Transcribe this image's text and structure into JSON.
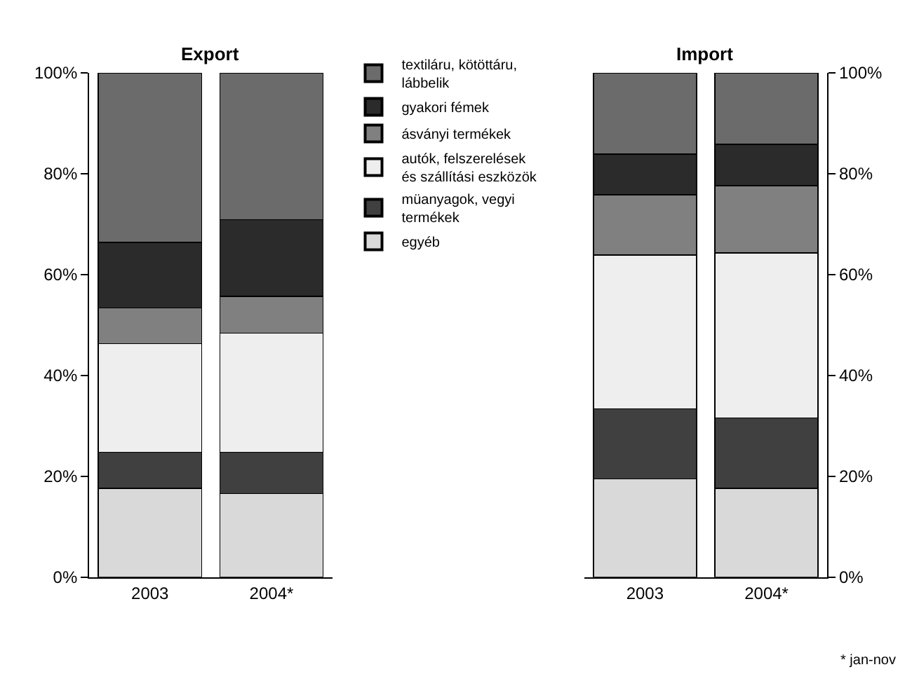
{
  "chart_data": [
    {
      "type": "bar",
      "stacked": true,
      "title": "Export",
      "categories": [
        "2003",
        "2004*"
      ],
      "ylim": [
        0,
        100
      ],
      "yticks": [
        {
          "value": 0,
          "label": "0%"
        },
        {
          "value": 20,
          "label": "20%"
        },
        {
          "value": 40,
          "label": "40%"
        },
        {
          "value": 60,
          "label": "60%"
        },
        {
          "value": 80,
          "label": "80%"
        },
        {
          "value": 100,
          "label": "100%"
        }
      ],
      "legend": "right",
      "series": [
        {
          "name": "egyéb",
          "color": "#d9d9d9",
          "values": [
            17.6,
            16.6
          ]
        },
        {
          "name": "müanyagok, vegyi termékek",
          "color": "#404040",
          "values": [
            7.2,
            8.2
          ]
        },
        {
          "name": "autók, felszerelések és szállítási eszközök",
          "color": "#eeeeee",
          "values": [
            21.5,
            23.6
          ]
        },
        {
          "name": "ásványi termékek",
          "color": "#808080",
          "values": [
            7.1,
            7.3
          ]
        },
        {
          "name": "gyakori fémek",
          "color": "#2b2b2b",
          "values": [
            13.0,
            15.2
          ]
        },
        {
          "name": "textiláru, kötöttáru, lábbelik",
          "color": "#6b6b6b",
          "values": [
            33.6,
            29.1
          ]
        }
      ]
    },
    {
      "type": "bar",
      "stacked": true,
      "title": "Import",
      "categories": [
        "2003",
        "2004*"
      ],
      "ylim": [
        0,
        100
      ],
      "yticks": [
        {
          "value": 0,
          "label": "0%"
        },
        {
          "value": 20,
          "label": "20%"
        },
        {
          "value": 40,
          "label": "40%"
        },
        {
          "value": 60,
          "label": "60%"
        },
        {
          "value": 80,
          "label": "80%"
        },
        {
          "value": 100,
          "label": "100%"
        }
      ],
      "annotations": [
        "* jan-nov"
      ],
      "series": [
        {
          "color": "#d9d9d9",
          "values": [
            19.5,
            17.6
          ]
        },
        {
          "color": "#404040",
          "values": [
            13.9,
            14.0
          ]
        },
        {
          "color": "#eeeeee",
          "values": [
            30.5,
            32.7
          ]
        },
        {
          "color": "#808080",
          "values": [
            11.9,
            13.3
          ]
        },
        {
          "color": "#2b2b2b",
          "values": [
            8.1,
            8.2
          ]
        },
        {
          "color": "#6b6b6b",
          "values": [
            16.1,
            14.2
          ]
        }
      ]
    }
  ]
}
